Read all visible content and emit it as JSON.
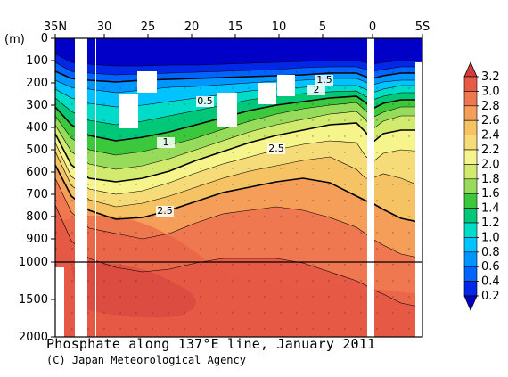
{
  "chart_data": {
    "type": "heatmap",
    "title": "Phosphate along 137°E line, January 2011",
    "credit": "(C) Japan Meteorological Agency",
    "x_tick_labels": [
      "35N",
      "30",
      "25",
      "20",
      "15",
      "10",
      "5",
      "0",
      "5S"
    ],
    "y_unit_label": "(m)",
    "y_tick_labels": [
      "0",
      "100",
      "200",
      "300",
      "400",
      "500",
      "600",
      "700",
      "800",
      "900",
      "1000",
      "1500",
      "2000"
    ],
    "y_axis_break": 1000,
    "colorbar_labels": [
      "0.2",
      "0.4",
      "0.6",
      "0.8",
      "1.0",
      "1.2",
      "1.4",
      "1.6",
      "1.8",
      "2.0",
      "2.2",
      "2.4",
      "2.6",
      "2.8",
      "3.0",
      "3.2"
    ],
    "colorbar_colors": [
      "#0000c8",
      "#0028e6",
      "#0064ff",
      "#0096ff",
      "#00c3ff",
      "#00dcc8",
      "#00c878",
      "#3cc83c",
      "#96dc5a",
      "#d2eb6e",
      "#f5f58c",
      "#f5dc78",
      "#f5c364",
      "#f59e5a",
      "#f07850",
      "#e65a46",
      "#d23c3c"
    ],
    "contour_labels": [
      "0.5",
      "1",
      "1.5",
      "2",
      "2.5",
      "2.5"
    ],
    "contour_levels_bold": [
      0.5,
      1.0,
      1.5,
      2.0,
      2.5
    ],
    "series": [
      {
        "values": [
          {
            "depth": 0,
            "value": 0.2
          },
          {
            "depth": 100,
            "value": 0.3
          },
          {
            "depth": 200,
            "value": 0.8
          },
          {
            "depth": 300,
            "value": 1.2
          },
          {
            "depth": 400,
            "value": 1.6
          },
          {
            "depth": 500,
            "value": 2.0
          },
          {
            "depth": 600,
            "value": 2.4
          },
          {
            "depth": 700,
            "value": 2.6
          },
          {
            "depth": 800,
            "value": 2.8
          },
          {
            "depth": 900,
            "value": 2.9
          },
          {
            "depth": 1000,
            "value": 3.0
          },
          {
            "depth": 1500,
            "value": 2.9
          },
          {
            "depth": 2000,
            "value": 2.8
          }
        ]
      }
    ]
  }
}
